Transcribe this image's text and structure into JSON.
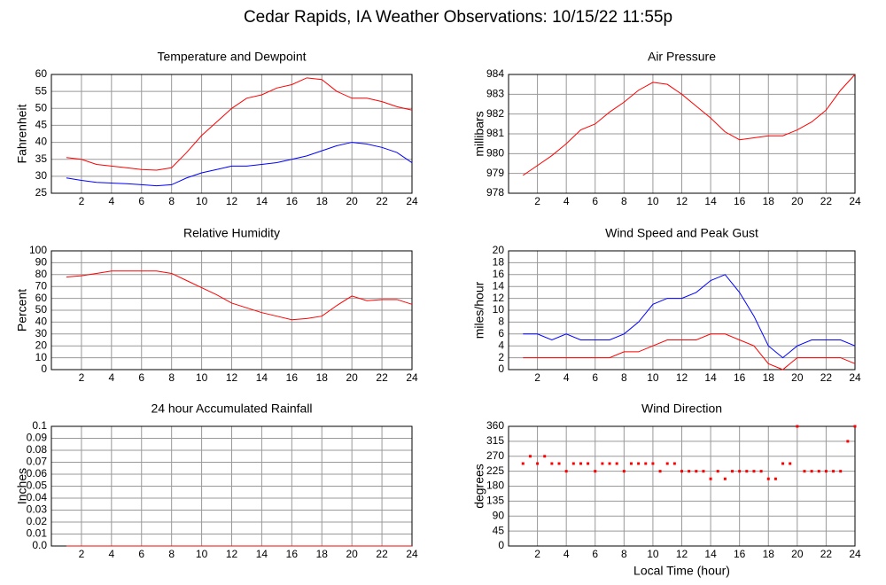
{
  "title": "Cedar Rapids, IA Weather Observations: 10/15/22 11:55p",
  "chart_data": [
    {
      "type": "line",
      "title": "Temperature and Dewpoint",
      "ylabel": "Fahrenheit",
      "x": [
        1,
        2,
        3,
        4,
        5,
        6,
        7,
        8,
        9,
        10,
        11,
        12,
        13,
        14,
        15,
        16,
        17,
        18,
        19,
        20,
        21,
        22,
        23,
        24
      ],
      "series": [
        {
          "color": "#ff0000",
          "values": [
            35.5,
            35,
            33.5,
            33,
            32.5,
            32,
            31.8,
            32.5,
            37,
            42,
            46,
            50,
            53,
            54,
            56,
            57,
            59,
            58.5,
            55,
            53,
            53,
            52,
            50.5,
            49.5
          ]
        },
        {
          "color": "#0000ff",
          "values": [
            29.5,
            28.8,
            28.2,
            28,
            27.8,
            27.5,
            27.2,
            27.5,
            29.5,
            31,
            32,
            33,
            33,
            33.5,
            34,
            35,
            36,
            37.5,
            39,
            40,
            39.5,
            38.5,
            37,
            34
          ]
        }
      ],
      "xlim": [
        0,
        24
      ],
      "xticks": [
        2,
        4,
        6,
        8,
        10,
        12,
        14,
        16,
        18,
        20,
        22,
        24
      ],
      "ylim": [
        25,
        60
      ],
      "yticks": [
        25,
        30,
        35,
        40,
        45,
        50,
        55,
        60
      ],
      "grid": true
    },
    {
      "type": "line",
      "title": "Air Pressure",
      "ylabel": "millibars",
      "x": [
        1,
        2,
        3,
        4,
        5,
        6,
        7,
        8,
        9,
        10,
        11,
        12,
        13,
        14,
        15,
        16,
        17,
        18,
        19,
        20,
        21,
        22,
        23,
        24
      ],
      "series": [
        {
          "color": "#ff0000",
          "values": [
            978.9,
            979.4,
            979.9,
            980.5,
            981.2,
            981.5,
            982.1,
            982.6,
            983.2,
            983.6,
            983.5,
            983.0,
            982.4,
            981.8,
            981.1,
            980.7,
            980.8,
            980.9,
            980.9,
            981.2,
            981.6,
            982.2,
            983.2,
            984.0
          ]
        }
      ],
      "xlim": [
        0,
        24
      ],
      "xticks": [
        2,
        4,
        6,
        8,
        10,
        12,
        14,
        16,
        18,
        20,
        22,
        24
      ],
      "ylim": [
        978,
        984
      ],
      "yticks": [
        978,
        979,
        980,
        981,
        982,
        983,
        984
      ],
      "grid": true
    },
    {
      "type": "line",
      "title": "Relative Humidity",
      "ylabel": "Percent",
      "x": [
        1,
        2,
        3,
        4,
        5,
        6,
        7,
        8,
        9,
        10,
        11,
        12,
        13,
        14,
        15,
        16,
        17,
        18,
        19,
        20,
        21,
        22,
        23,
        24
      ],
      "series": [
        {
          "color": "#ff0000",
          "values": [
            78,
            79,
            81,
            83,
            83,
            83,
            83,
            81,
            75,
            69,
            63,
            56,
            52,
            48,
            45,
            42,
            43,
            45,
            54,
            62,
            58,
            59,
            59,
            55
          ]
        }
      ],
      "xlim": [
        0,
        24
      ],
      "xticks": [
        2,
        4,
        6,
        8,
        10,
        12,
        14,
        16,
        18,
        20,
        22,
        24
      ],
      "ylim": [
        0,
        100
      ],
      "yticks": [
        0,
        10,
        20,
        30,
        40,
        50,
        60,
        70,
        80,
        90,
        100
      ],
      "grid": true
    },
    {
      "type": "line",
      "title": "Wind Speed and Peak Gust",
      "ylabel": "miles/hour",
      "x": [
        1,
        2,
        3,
        4,
        5,
        6,
        7,
        8,
        9,
        10,
        11,
        12,
        13,
        14,
        15,
        16,
        17,
        18,
        19,
        20,
        21,
        22,
        23,
        24
      ],
      "series": [
        {
          "color": "#0000ff",
          "values": [
            6,
            6,
            5,
            6,
            5,
            5,
            5,
            6,
            8,
            11,
            12,
            12,
            13,
            15,
            16,
            13,
            9,
            4,
            2,
            4,
            5,
            5,
            5,
            4
          ]
        },
        {
          "color": "#ff0000",
          "values": [
            2,
            2,
            2,
            2,
            2,
            2,
            2,
            3,
            3,
            4,
            5,
            5,
            5,
            6,
            6,
            5,
            4,
            1,
            0,
            2,
            2,
            2,
            2,
            1
          ]
        }
      ],
      "xlim": [
        0,
        24
      ],
      "xticks": [
        2,
        4,
        6,
        8,
        10,
        12,
        14,
        16,
        18,
        20,
        22,
        24
      ],
      "ylim": [
        0,
        20
      ],
      "yticks": [
        0,
        2,
        4,
        6,
        8,
        10,
        12,
        14,
        16,
        18,
        20
      ],
      "grid": true
    },
    {
      "type": "line",
      "title": "24 hour Accumulated Rainfall",
      "ylabel": "Inches",
      "x": [
        1,
        24
      ],
      "series": [
        {
          "color": "#ff0000",
          "values": [
            0,
            0
          ]
        }
      ],
      "xlim": [
        0,
        24
      ],
      "xticks": [
        2,
        4,
        6,
        8,
        10,
        12,
        14,
        16,
        18,
        20,
        22,
        24
      ],
      "ylim": [
        0,
        0.1
      ],
      "yticks": [
        {
          "value": 0,
          "label": "0.0"
        },
        0.01,
        0.02,
        0.03,
        0.04,
        0.05,
        0.06,
        0.07,
        0.08,
        0.09,
        0.1
      ],
      "grid": true
    },
    {
      "type": "scatter",
      "title": "Wind Direction",
      "ylabel": "degrees",
      "xlabel": "Local Time (hour)",
      "x": [
        1,
        1.5,
        2,
        2.5,
        3,
        3.5,
        4,
        4.5,
        5,
        5.5,
        6,
        6.5,
        7,
        7.5,
        8,
        8.5,
        9,
        9.5,
        10,
        10.5,
        11,
        11.5,
        12,
        12.5,
        13,
        13.5,
        14,
        14.5,
        15,
        15.5,
        16,
        16.5,
        17,
        17.5,
        18,
        18.5,
        19,
        19.5,
        20,
        20.5,
        21,
        21.5,
        22,
        22.5,
        23,
        23.5,
        24
      ],
      "series": [
        {
          "color": "#ff0000",
          "values": [
            248,
            270,
            248,
            270,
            248,
            248,
            225,
            248,
            248,
            248,
            225,
            248,
            248,
            248,
            225,
            248,
            248,
            248,
            248,
            225,
            248,
            248,
            225,
            225,
            225,
            225,
            202,
            225,
            202,
            225,
            225,
            225,
            225,
            225,
            202,
            202,
            248,
            248,
            360,
            225,
            225,
            225,
            225,
            225,
            225,
            315,
            360
          ]
        }
      ],
      "xlim": [
        0,
        24
      ],
      "xticks": [
        2,
        4,
        6,
        8,
        10,
        12,
        14,
        16,
        18,
        20,
        22,
        24
      ],
      "ylim": [
        0,
        360
      ],
      "yticks": [
        0,
        45,
        90,
        135,
        180,
        225,
        270,
        315,
        360
      ],
      "grid": true
    }
  ]
}
